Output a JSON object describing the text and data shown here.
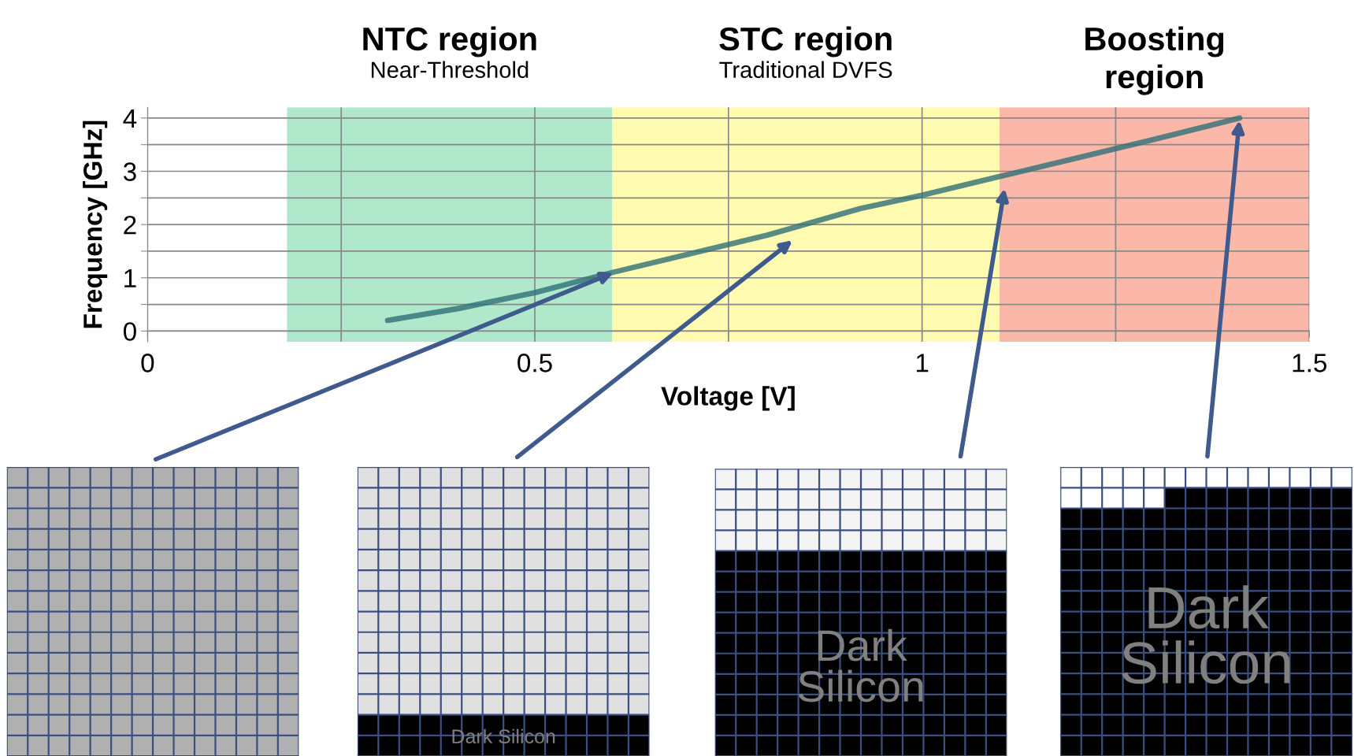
{
  "chart_data": {
    "type": "line",
    "xlabel": "Voltage [V]",
    "ylabel": "Frequency [GHz]",
    "x": [
      0.31,
      0.4,
      0.5,
      0.6,
      0.7,
      0.8,
      0.92,
      1.0,
      1.1,
      1.2,
      1.3,
      1.41
    ],
    "series": [
      {
        "color": "#2f6f78",
        "values": [
          0.2,
          0.42,
          0.72,
          1.1,
          1.45,
          1.8,
          2.3,
          2.55,
          2.9,
          3.25,
          3.6,
          4.0
        ]
      }
    ],
    "xlim": [
      0,
      1.5
    ],
    "ylim": [
      -0.2,
      4.2
    ],
    "xticks": [
      0,
      {
        "value": 0.25,
        "label": null
      },
      0.5,
      {
        "value": 0.75,
        "label": null
      },
      1,
      {
        "value": 1.25,
        "label": null
      },
      1.5
    ],
    "yticks": [
      0,
      {
        "value": 0.5,
        "label": null
      },
      1,
      {
        "value": 1.5,
        "label": null
      },
      2,
      {
        "value": 2.5,
        "label": null
      },
      3,
      {
        "value": 3.5,
        "label": null
      },
      4
    ],
    "grid": true,
    "marker": "none",
    "line_style": "solid",
    "bands": [
      {
        "axis": "x",
        "from": 0.18,
        "to": 0.6,
        "label": "NTC region",
        "color": "#b0e8cc"
      },
      {
        "axis": "x",
        "from": 0.6,
        "to": 1.1,
        "label": "STC region",
        "color": "#fffbb0"
      },
      {
        "axis": "x",
        "from": 1.1,
        "to": 1.5,
        "label": "Boosting\nregion",
        "color": "#fbb8a8"
      }
    ],
    "annotations": [
      "Near-Threshold",
      "Traditional DVFS",
      "Dark Silicon",
      "Dark\nSilicon",
      "Dark\nSilicon"
    ]
  }
}
